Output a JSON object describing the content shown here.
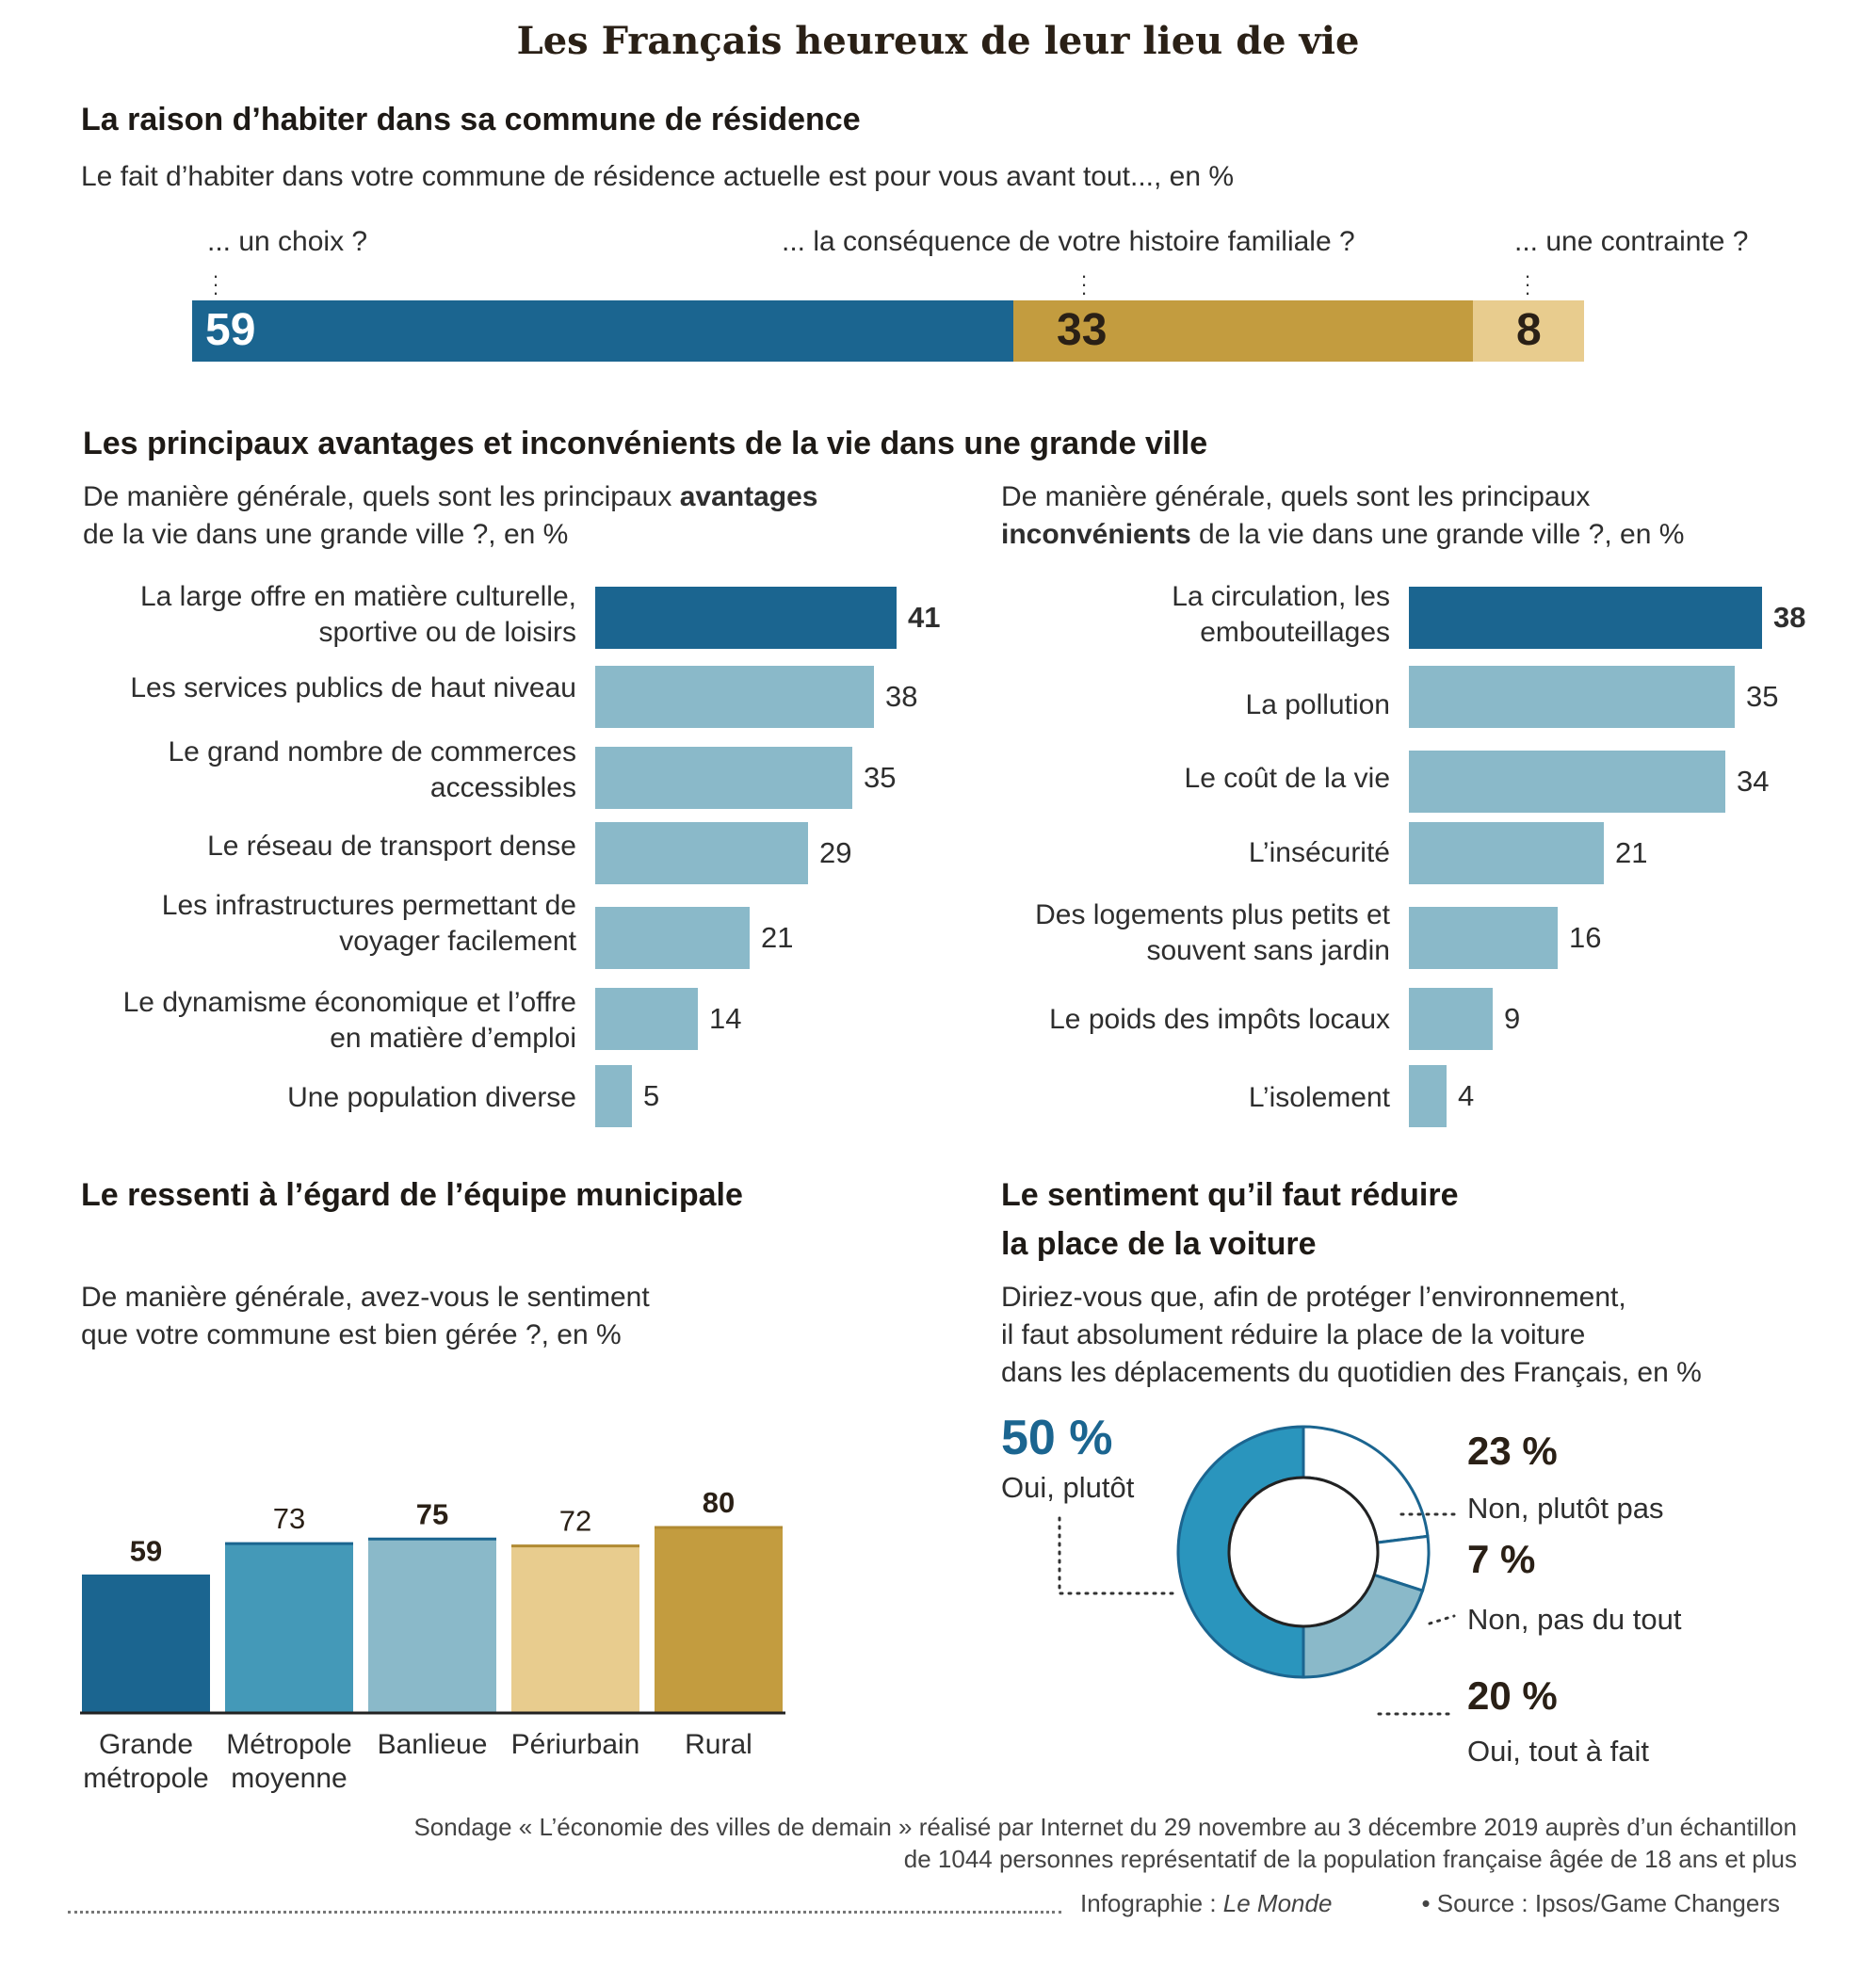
{
  "title": "Les Français heureux de leur lieu de vie",
  "section1": {
    "heading": "La raison d’habiter dans sa commune de résidence",
    "question": "Le fait d’habiter dans votre commune de résidence actuelle est pour vous avant tout..., en %"
  },
  "section2": {
    "heading": "Les principaux avantages et inconvénients de la vie dans une grande ville",
    "left_question_pre": "De manière générale, quels sont les principaux ",
    "left_question_bold": "avantages",
    "left_question_post": "de la vie dans une grande ville ?, en %",
    "right_question_pre": "De manière générale, quels sont les principaux",
    "right_question_bold": "inconvénients",
    "right_question_post": " de la vie dans une grande ville ?, en %"
  },
  "section3": {
    "heading": "Le ressenti à l’égard de l’équipe municipale",
    "question_line1": "De manière générale, avez-vous le sentiment",
    "question_line2": "que votre commune est bien gérée ?, en %"
  },
  "section4": {
    "heading_line1": "Le sentiment qu’il faut réduire",
    "heading_line2": "la place de la voiture",
    "question_line1": "Diriez-vous que, afin de protéger l’environnement,",
    "question_line2": "il faut absolument réduire la place de la voiture",
    "question_line3": "dans les déplacements du quotidien des Français, en %"
  },
  "footer": {
    "line1": "Sondage « L’économie des villes de demain » réalisé par Internet du 29 novembre au 3 décembre 2019 auprès d’un échantillon",
    "line2": "de 1044 personnes représentatif de la population française âgée de 18 ans et plus",
    "credit_prefix": "Infographie : ",
    "credit_name": "Le Monde",
    "source": "• Source : Ipsos/Game Changers"
  },
  "chart_data": [
    {
      "type": "bar",
      "orientation": "stacked-horizontal",
      "categories": [
        "... un choix ?",
        "... la conséquence de votre histoire familiale ?",
        "... une contrainte ?"
      ],
      "values": [
        59,
        33,
        8
      ],
      "value_labels": [
        "59",
        "33",
        "8"
      ],
      "colors": [
        "#1b6590",
        "#c39c3f",
        "#e8cc8e"
      ]
    },
    {
      "type": "bar",
      "orientation": "horizontal",
      "categories": [
        "La large offre en matière culturelle, sportive ou de loisirs",
        "Les services publics de haut niveau",
        "Le grand nombre de commerces accessibles",
        "Le réseau de transport dense",
        "Les infrastructures permettant de voyager facilement",
        "Le dynamisme économique et l’offre en matière d’emploi",
        "Une population diverse"
      ],
      "values": [
        41,
        38,
        35,
        29,
        21,
        14,
        5
      ],
      "value_labels": [
        "41",
        "38",
        "35",
        "29",
        "21",
        "14",
        "5"
      ],
      "colors": {
        "highlight": "#1b6590",
        "base": "#8ab9c9"
      }
    },
    {
      "type": "bar",
      "orientation": "horizontal",
      "categories": [
        "La circulation, les embouteillages",
        "La pollution",
        "Le coût de la vie",
        "L’insécurité",
        "Des logements plus petits et souvent sans jardin",
        "Le  poids des impôts locaux",
        "L’isolement"
      ],
      "values": [
        38,
        35,
        34,
        21,
        16,
        9,
        4
      ],
      "value_labels": [
        "38",
        "35",
        "34",
        "21",
        "16",
        "9",
        "4"
      ],
      "colors": {
        "highlight": "#1b6590",
        "base": "#8ab9c9"
      }
    },
    {
      "type": "bar",
      "orientation": "vertical",
      "categories": [
        "Grande métropole",
        "Métropole moyenne",
        "Banlieue",
        "Périurbain",
        "Rural"
      ],
      "values": [
        59,
        73,
        75,
        72,
        80
      ],
      "value_labels": [
        "59",
        "73",
        "75",
        "72",
        "80"
      ],
      "bold_labels": [
        true,
        false,
        true,
        false,
        true
      ],
      "colors": [
        "#1b6590",
        "#4499b8",
        "#8ab9c9",
        "#e8cc8e",
        "#c39c3f"
      ]
    },
    {
      "type": "pie",
      "donut": true,
      "slices": [
        {
          "label": "Oui, tout à fait",
          "value": 20,
          "value_label": "20 %",
          "color": "#8ab9c9"
        },
        {
          "label": "Oui, plutôt",
          "value": 50,
          "value_label": "50 %",
          "color": "#2a95bd"
        },
        {
          "label": "Non, plutôt pas",
          "value": 23,
          "value_label": "23 %",
          "color": "#ffffff"
        },
        {
          "label": "Non, pas du tout",
          "value": 7,
          "value_label": "7 %",
          "color": "#ffffff"
        }
      ],
      "outline_color": "#1b6590",
      "highlight_color": "#1b6590"
    }
  ]
}
